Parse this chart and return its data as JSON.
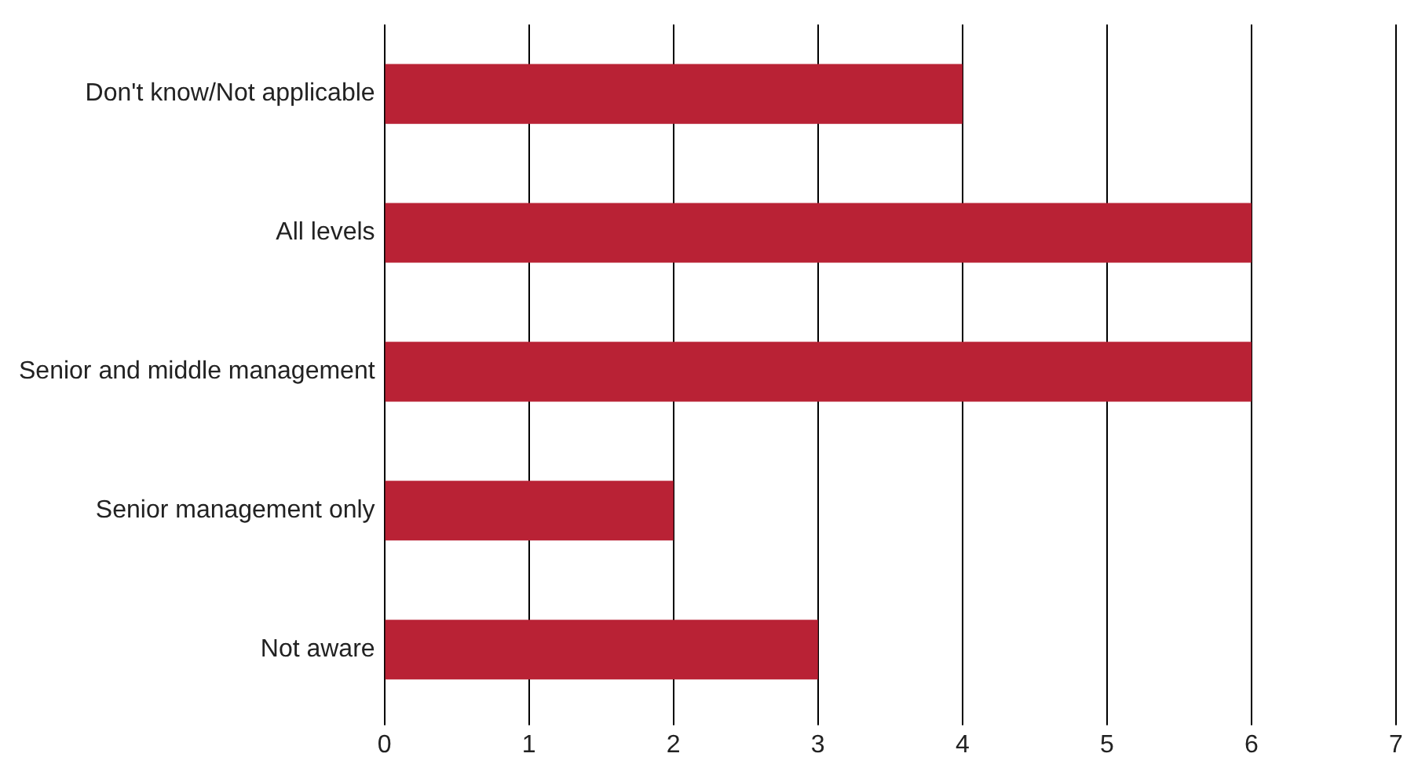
{
  "chart_data": {
    "type": "bar",
    "orientation": "horizontal",
    "categories": [
      "Don't know/Not applicable",
      "All levels",
      "Senior and middle management",
      "Senior management only",
      "Not aware"
    ],
    "values": [
      4,
      6,
      6,
      2,
      3
    ],
    "color": "#b92235",
    "xlim": [
      0,
      7
    ],
    "xticks": [
      0,
      1,
      2,
      3,
      4,
      5,
      6,
      7
    ],
    "grid": "x",
    "legend": false
  }
}
